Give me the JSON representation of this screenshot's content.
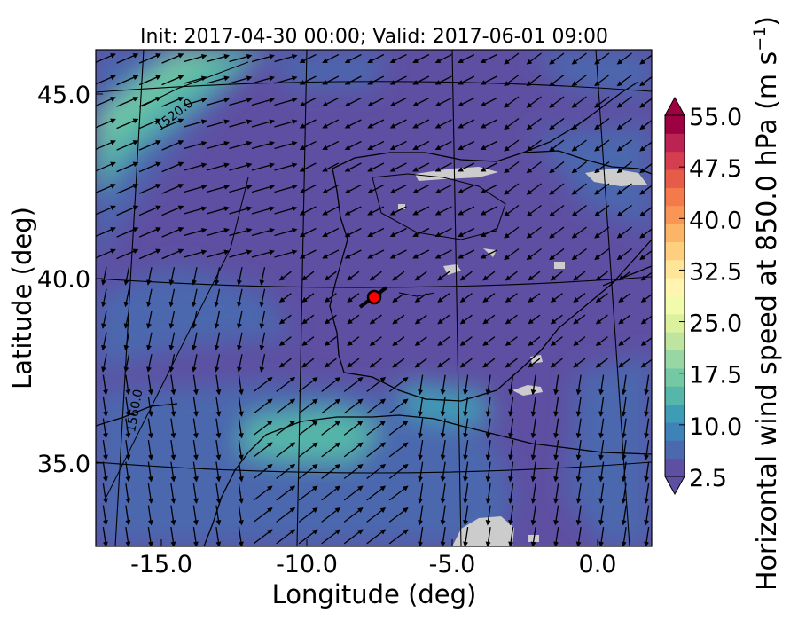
{
  "title": "Init: 2017-04-30 00:00; Valid: 2017-06-01 09:00",
  "x_axis": {
    "label": "Longitude (deg)",
    "ticks": [
      {
        "value": -15.0,
        "label": "-15.0"
      },
      {
        "value": -10.0,
        "label": "-10.0"
      },
      {
        "value": -5.0,
        "label": "-5.0"
      },
      {
        "value": 0.0,
        "label": "0.0"
      }
    ]
  },
  "y_axis": {
    "label": "Latitude (deg)",
    "ticks": [
      {
        "value": 45.0,
        "label": "45.0"
      },
      {
        "value": 40.0,
        "label": "40.0"
      },
      {
        "value": 35.0,
        "label": "35.0"
      }
    ]
  },
  "colorbar": {
    "label_main": "Horizontal wind speed at 850.0 hPa (m s",
    "label_exp": "−1",
    "label_close": ")",
    "min": 2.5,
    "max": 55.0,
    "step": 2.5,
    "extend": "both",
    "tick_labels": [
      "2.5",
      "10.0",
      "17.5",
      "25.0",
      "32.5",
      "40.0",
      "47.5",
      "55.0"
    ],
    "tick_values": [
      2.5,
      10.0,
      17.5,
      25.0,
      32.5,
      40.0,
      47.5,
      55.0
    ],
    "colors": [
      "#5e4fa2",
      "#4c68ae",
      "#3f82b8",
      "#3f9cb6",
      "#55b6a9",
      "#75c8a4",
      "#98d6a4",
      "#bde5a0",
      "#dcf19d",
      "#f2faac",
      "#fff5b0",
      "#fee597",
      "#fdcf7e",
      "#fcb466",
      "#f99656",
      "#f47a4c",
      "#e65c49",
      "#d53e4f",
      "#bb2352",
      "#9e0142"
    ],
    "under_color": "#5e4fa2",
    "over_color": "#9e0142"
  },
  "overlays": {
    "vectors": "horizontal wind arrows",
    "contour_labels": [
      "1520.0",
      "1560.0"
    ],
    "marker": {
      "lon": -7.7,
      "lat": 39.3,
      "color": "#ff0000"
    }
  },
  "chart_data": {
    "type": "heatmap",
    "variable": "Horizontal wind speed at 850.0 hPa (m s^-1)",
    "title": "Init: 2017-04-30 00:00; Valid: 2017-06-01 09:00",
    "xlabel": "Longitude (deg)",
    "ylabel": "Latitude (deg)",
    "xlim": [
      -16,
      0
    ],
    "ylim": [
      33,
      46
    ],
    "color_range": [
      2.5,
      55.0
    ],
    "contours": [
      1520.0,
      1560.0
    ],
    "grid": true,
    "marker": {
      "lon": -7.7,
      "lat": 39.3
    }
  }
}
